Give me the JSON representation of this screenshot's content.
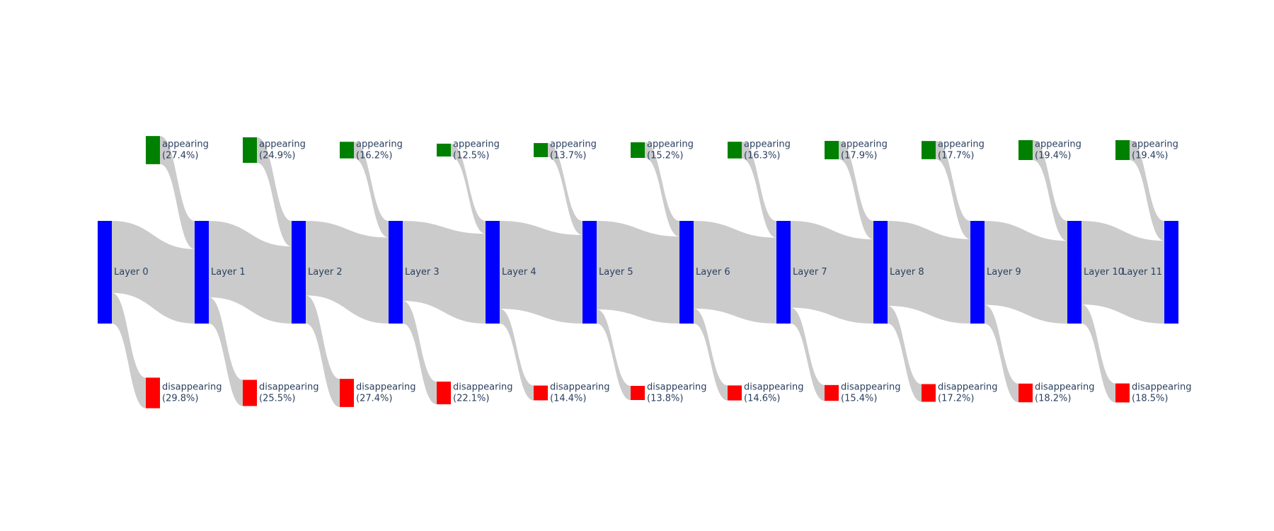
{
  "chart_data": {
    "type": "sankey",
    "node_colors": {
      "layer": "#0000ff",
      "appearing": "#008000",
      "disappearing": "#ff0000",
      "link": "#c8c8c8",
      "label": "#2a3f5f"
    },
    "layers": [
      {
        "label": "Layer 0"
      },
      {
        "label": "Layer 1"
      },
      {
        "label": "Layer 2"
      },
      {
        "label": "Layer 3"
      },
      {
        "label": "Layer 4"
      },
      {
        "label": "Layer 5"
      },
      {
        "label": "Layer 6"
      },
      {
        "label": "Layer 7"
      },
      {
        "label": "Layer 8"
      },
      {
        "label": "Layer 9"
      },
      {
        "label": "Layer 10"
      },
      {
        "label": "Layer 11"
      }
    ],
    "transitions": [
      {
        "appearing_label": "appearing",
        "appearing_pct": "(27.4%)",
        "appearing_value": 27.4,
        "disappearing_label": "disappearing",
        "disappearing_pct": "(29.8%)",
        "disappearing_value": 29.8
      },
      {
        "appearing_label": "appearing",
        "appearing_pct": "(24.9%)",
        "appearing_value": 24.9,
        "disappearing_label": "disappearing",
        "disappearing_pct": "(25.5%)",
        "disappearing_value": 25.5
      },
      {
        "appearing_label": "appearing",
        "appearing_pct": "(16.2%)",
        "appearing_value": 16.2,
        "disappearing_label": "disappearing",
        "disappearing_pct": "(27.4%)",
        "disappearing_value": 27.4
      },
      {
        "appearing_label": "appearing",
        "appearing_pct": "(12.5%)",
        "appearing_value": 12.5,
        "disappearing_label": "disappearing",
        "disappearing_pct": "(22.1%)",
        "disappearing_value": 22.1
      },
      {
        "appearing_label": "appearing",
        "appearing_pct": "(13.7%)",
        "appearing_value": 13.7,
        "disappearing_label": "disappearing",
        "disappearing_pct": "(14.4%)",
        "disappearing_value": 14.4
      },
      {
        "appearing_label": "appearing",
        "appearing_pct": "(15.2%)",
        "appearing_value": 15.2,
        "disappearing_label": "disappearing",
        "disappearing_pct": "(13.8%)",
        "disappearing_value": 13.8
      },
      {
        "appearing_label": "appearing",
        "appearing_pct": "(16.3%)",
        "appearing_value": 16.3,
        "disappearing_label": "disappearing",
        "disappearing_pct": "(14.6%)",
        "disappearing_value": 14.6
      },
      {
        "appearing_label": "appearing",
        "appearing_pct": "(17.9%)",
        "appearing_value": 17.9,
        "disappearing_label": "disappearing",
        "disappearing_pct": "(15.4%)",
        "disappearing_value": 15.4
      },
      {
        "appearing_label": "appearing",
        "appearing_pct": "(17.7%)",
        "appearing_value": 17.7,
        "disappearing_label": "disappearing",
        "disappearing_pct": "(17.2%)",
        "disappearing_value": 17.2
      },
      {
        "appearing_label": "appearing",
        "appearing_pct": "(19.4%)",
        "appearing_value": 19.4,
        "disappearing_label": "disappearing",
        "disappearing_pct": "(18.2%)",
        "disappearing_value": 18.2
      },
      {
        "appearing_label": "appearing",
        "appearing_pct": "(19.4%)",
        "appearing_value": 19.4,
        "disappearing_label": "disappearing",
        "disappearing_pct": "(18.5%)",
        "disappearing_value": 18.5
      }
    ]
  }
}
